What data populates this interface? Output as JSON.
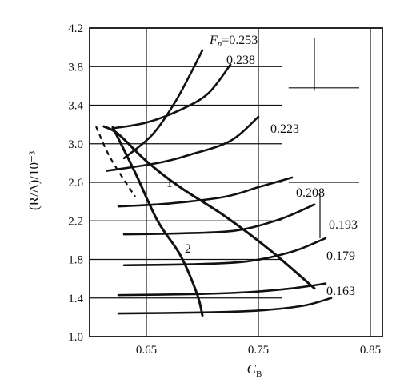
{
  "chart_data": {
    "type": "line",
    "xlabel": "C_B",
    "ylabel": "(R/Δ)/10⁻³",
    "xlim": [
      0.6,
      0.86
    ],
    "ylim": [
      1.0,
      4.2
    ],
    "xticks": [
      0.65,
      0.75,
      0.85
    ],
    "xtick_labels": [
      "0.65",
      "0.75",
      "0.85"
    ],
    "yticks": [
      1.0,
      1.4,
      1.8,
      2.2,
      2.6,
      3.0,
      3.4,
      3.8,
      4.2
    ],
    "ytick_labels": [
      "1.0",
      "1.4",
      "1.8",
      "2.2",
      "2.6",
      "3.0",
      "3.4",
      "3.8",
      "4.2"
    ],
    "grid": true,
    "series": [
      {
        "name": "Fn=0.253",
        "label": "F_n=0.253",
        "points": [
          [
            0.63,
            2.85
          ],
          [
            0.655,
            3.09
          ],
          [
            0.675,
            3.42
          ],
          [
            0.69,
            3.74
          ],
          [
            0.7,
            3.97
          ]
        ]
      },
      {
        "name": "0.238",
        "label": "0.238",
        "points": [
          [
            0.62,
            3.16
          ],
          [
            0.65,
            3.22
          ],
          [
            0.68,
            3.35
          ],
          [
            0.705,
            3.52
          ],
          [
            0.725,
            3.82
          ]
        ]
      },
      {
        "name": "0.223",
        "label": "0.223",
        "points": [
          [
            0.615,
            2.72
          ],
          [
            0.66,
            2.8
          ],
          [
            0.69,
            2.89
          ],
          [
            0.725,
            3.03
          ],
          [
            0.75,
            3.28
          ]
        ]
      },
      {
        "name": "0.208",
        "label": "0.208",
        "points": [
          [
            0.625,
            2.35
          ],
          [
            0.67,
            2.38
          ],
          [
            0.72,
            2.45
          ],
          [
            0.75,
            2.55
          ],
          [
            0.78,
            2.65
          ]
        ]
      },
      {
        "name": "0.193",
        "label": "0.193",
        "points": [
          [
            0.63,
            2.06
          ],
          [
            0.68,
            2.07
          ],
          [
            0.73,
            2.1
          ],
          [
            0.77,
            2.22
          ],
          [
            0.8,
            2.37
          ]
        ]
      },
      {
        "name": "0.179",
        "label": "0.179",
        "points": [
          [
            0.63,
            1.74
          ],
          [
            0.69,
            1.75
          ],
          [
            0.74,
            1.78
          ],
          [
            0.78,
            1.88
          ],
          [
            0.81,
            2.02
          ]
        ]
      },
      {
        "name": "0.163",
        "label": "0.163",
        "points": [
          [
            0.625,
            1.43
          ],
          [
            0.69,
            1.44
          ],
          [
            0.74,
            1.46
          ],
          [
            0.78,
            1.5
          ],
          [
            0.81,
            1.55
          ]
        ]
      },
      {
        "name": "",
        "label": "",
        "points": [
          [
            0.625,
            1.24
          ],
          [
            0.7,
            1.25
          ],
          [
            0.75,
            1.27
          ],
          [
            0.79,
            1.32
          ],
          [
            0.815,
            1.4
          ]
        ]
      }
    ],
    "envelopes": [
      {
        "name": "1",
        "label": "1",
        "points": [
          [
            0.612,
            3.18
          ],
          [
            0.625,
            3.1
          ],
          [
            0.65,
            2.82
          ],
          [
            0.68,
            2.55
          ],
          [
            0.72,
            2.25
          ],
          [
            0.76,
            1.9
          ],
          [
            0.8,
            1.5
          ]
        ]
      },
      {
        "name": "2",
        "label": "2",
        "points": [
          [
            0.62,
            3.17
          ],
          [
            0.64,
            2.7
          ],
          [
            0.66,
            2.2
          ],
          [
            0.68,
            1.85
          ],
          [
            0.695,
            1.45
          ],
          [
            0.7,
            1.22
          ]
        ]
      }
    ],
    "dashed_segment": {
      "points": [
        [
          0.605,
          3.18
        ],
        [
          0.618,
          2.85
        ],
        [
          0.64,
          2.45
        ]
      ]
    },
    "short_lines": [
      {
        "points": [
          [
            0.8,
            4.1
          ],
          [
            0.8,
            3.55
          ]
        ]
      },
      {
        "points": [
          [
            0.805,
            2.48
          ],
          [
            0.805,
            2.02
          ]
        ]
      },
      {
        "points": [
          [
            0.777,
            3.58
          ],
          [
            0.84,
            3.58
          ]
        ]
      },
      {
        "points": [
          [
            0.777,
            2.6
          ],
          [
            0.84,
            2.6
          ]
        ]
      }
    ]
  }
}
